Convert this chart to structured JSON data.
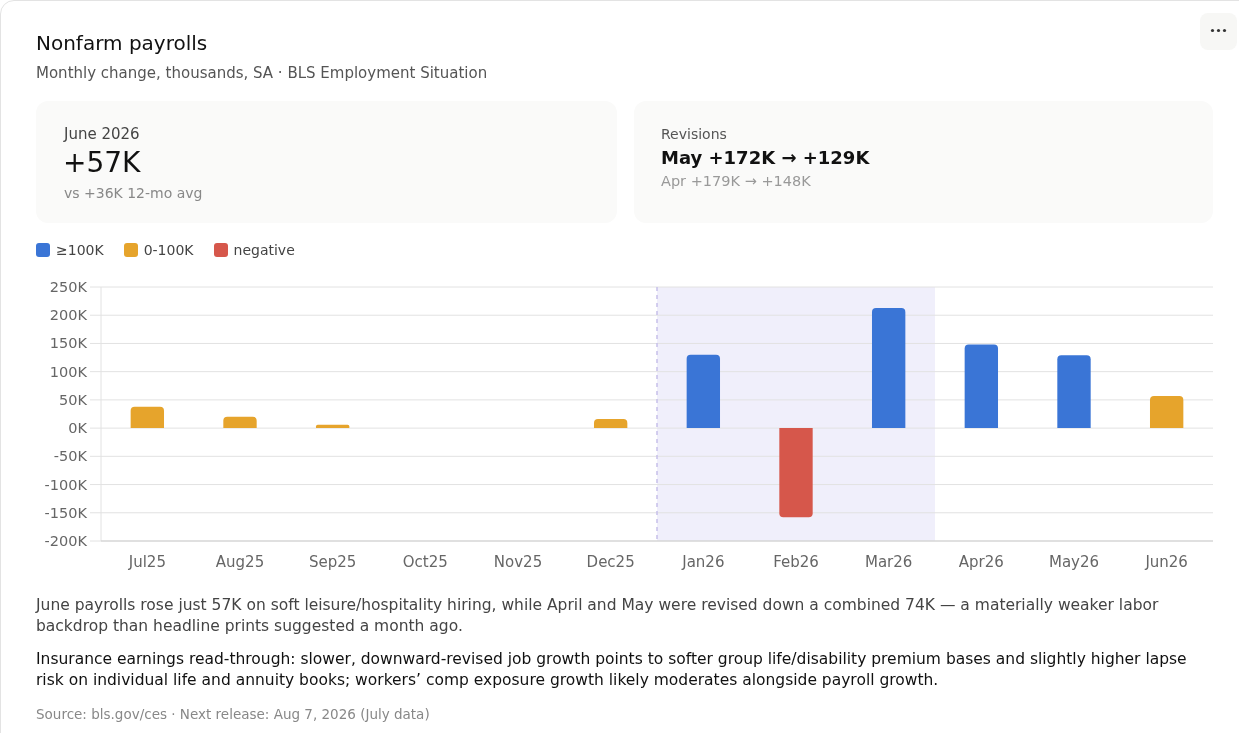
{
  "chart_data": {
    "type": "bar",
    "title": "Nonfarm payrolls",
    "subtitle": "Monthly change, thousands, SA · BLS Employment Situation",
    "categories": [
      "Jul25",
      "Aug25",
      "Sep25",
      "Oct25",
      "Nov25",
      "Dec25",
      "Jan26",
      "Feb26",
      "Mar26",
      "Apr26",
      "May26",
      "Jun26"
    ],
    "series": [
      {
        "name": "≥100K",
        "color": "#3a75d6",
        "values": [
          null,
          null,
          null,
          null,
          null,
          null,
          130,
          null,
          213,
          148,
          129,
          null
        ]
      },
      {
        "name": "0-100K",
        "color": "#e6a42c",
        "values": [
          38,
          20,
          6,
          null,
          null,
          16,
          null,
          null,
          null,
          null,
          null,
          57
        ]
      },
      {
        "name": "negative",
        "color": "#d6574b",
        "values": [
          null,
          null,
          null,
          null,
          null,
          null,
          null,
          -158,
          null,
          null,
          null,
          null
        ]
      }
    ],
    "stacked": true,
    "ylim": [
      -200,
      250
    ],
    "yticks": [
      {
        "value": 250,
        "label": "250K"
      },
      {
        "value": 200,
        "label": "200K"
      },
      {
        "value": 150,
        "label": "150K"
      },
      {
        "value": 100,
        "label": "100K"
      },
      {
        "value": 50,
        "label": "50K"
      },
      {
        "value": 0,
        "label": "0K"
      },
      {
        "value": -50,
        "label": "-50K"
      },
      {
        "value": -100,
        "label": "-100K"
      },
      {
        "value": -150,
        "label": "-150K"
      },
      {
        "value": -200,
        "label": "-200K"
      }
    ],
    "grid": "y",
    "legend": "top left",
    "bands": [
      {
        "axis": "x",
        "from": "Jan26",
        "to": "Mar26",
        "color": "#f0effb"
      }
    ],
    "ref_lines": [
      {
        "axis": "x",
        "value": "Jan26",
        "color": "#c6c0ea",
        "line_style": "dashed"
      }
    ],
    "annotations": [
      "June 2026",
      "+57K",
      "vs +36K 12-mo avg",
      "Revisions",
      "May +172K → +129K",
      "Apr +179K → +148K",
      "June payrolls rose just 57K on soft leisure/hospitality hiring, while April and May were revised down a combined 74K — a materially weaker labor backdrop than headline prints suggested a month ago.",
      "Insurance earnings read-through: slower, downward-revised job growth points to softer group life/disability premium bases and slightly higher lapse risk on individual life and annuity books; workers’ comp exposure growth likely moderates alongside payroll growth.",
      "Source: bls.gov/ces · Next release: Aug 7, 2026 (July data)"
    ]
  }
}
